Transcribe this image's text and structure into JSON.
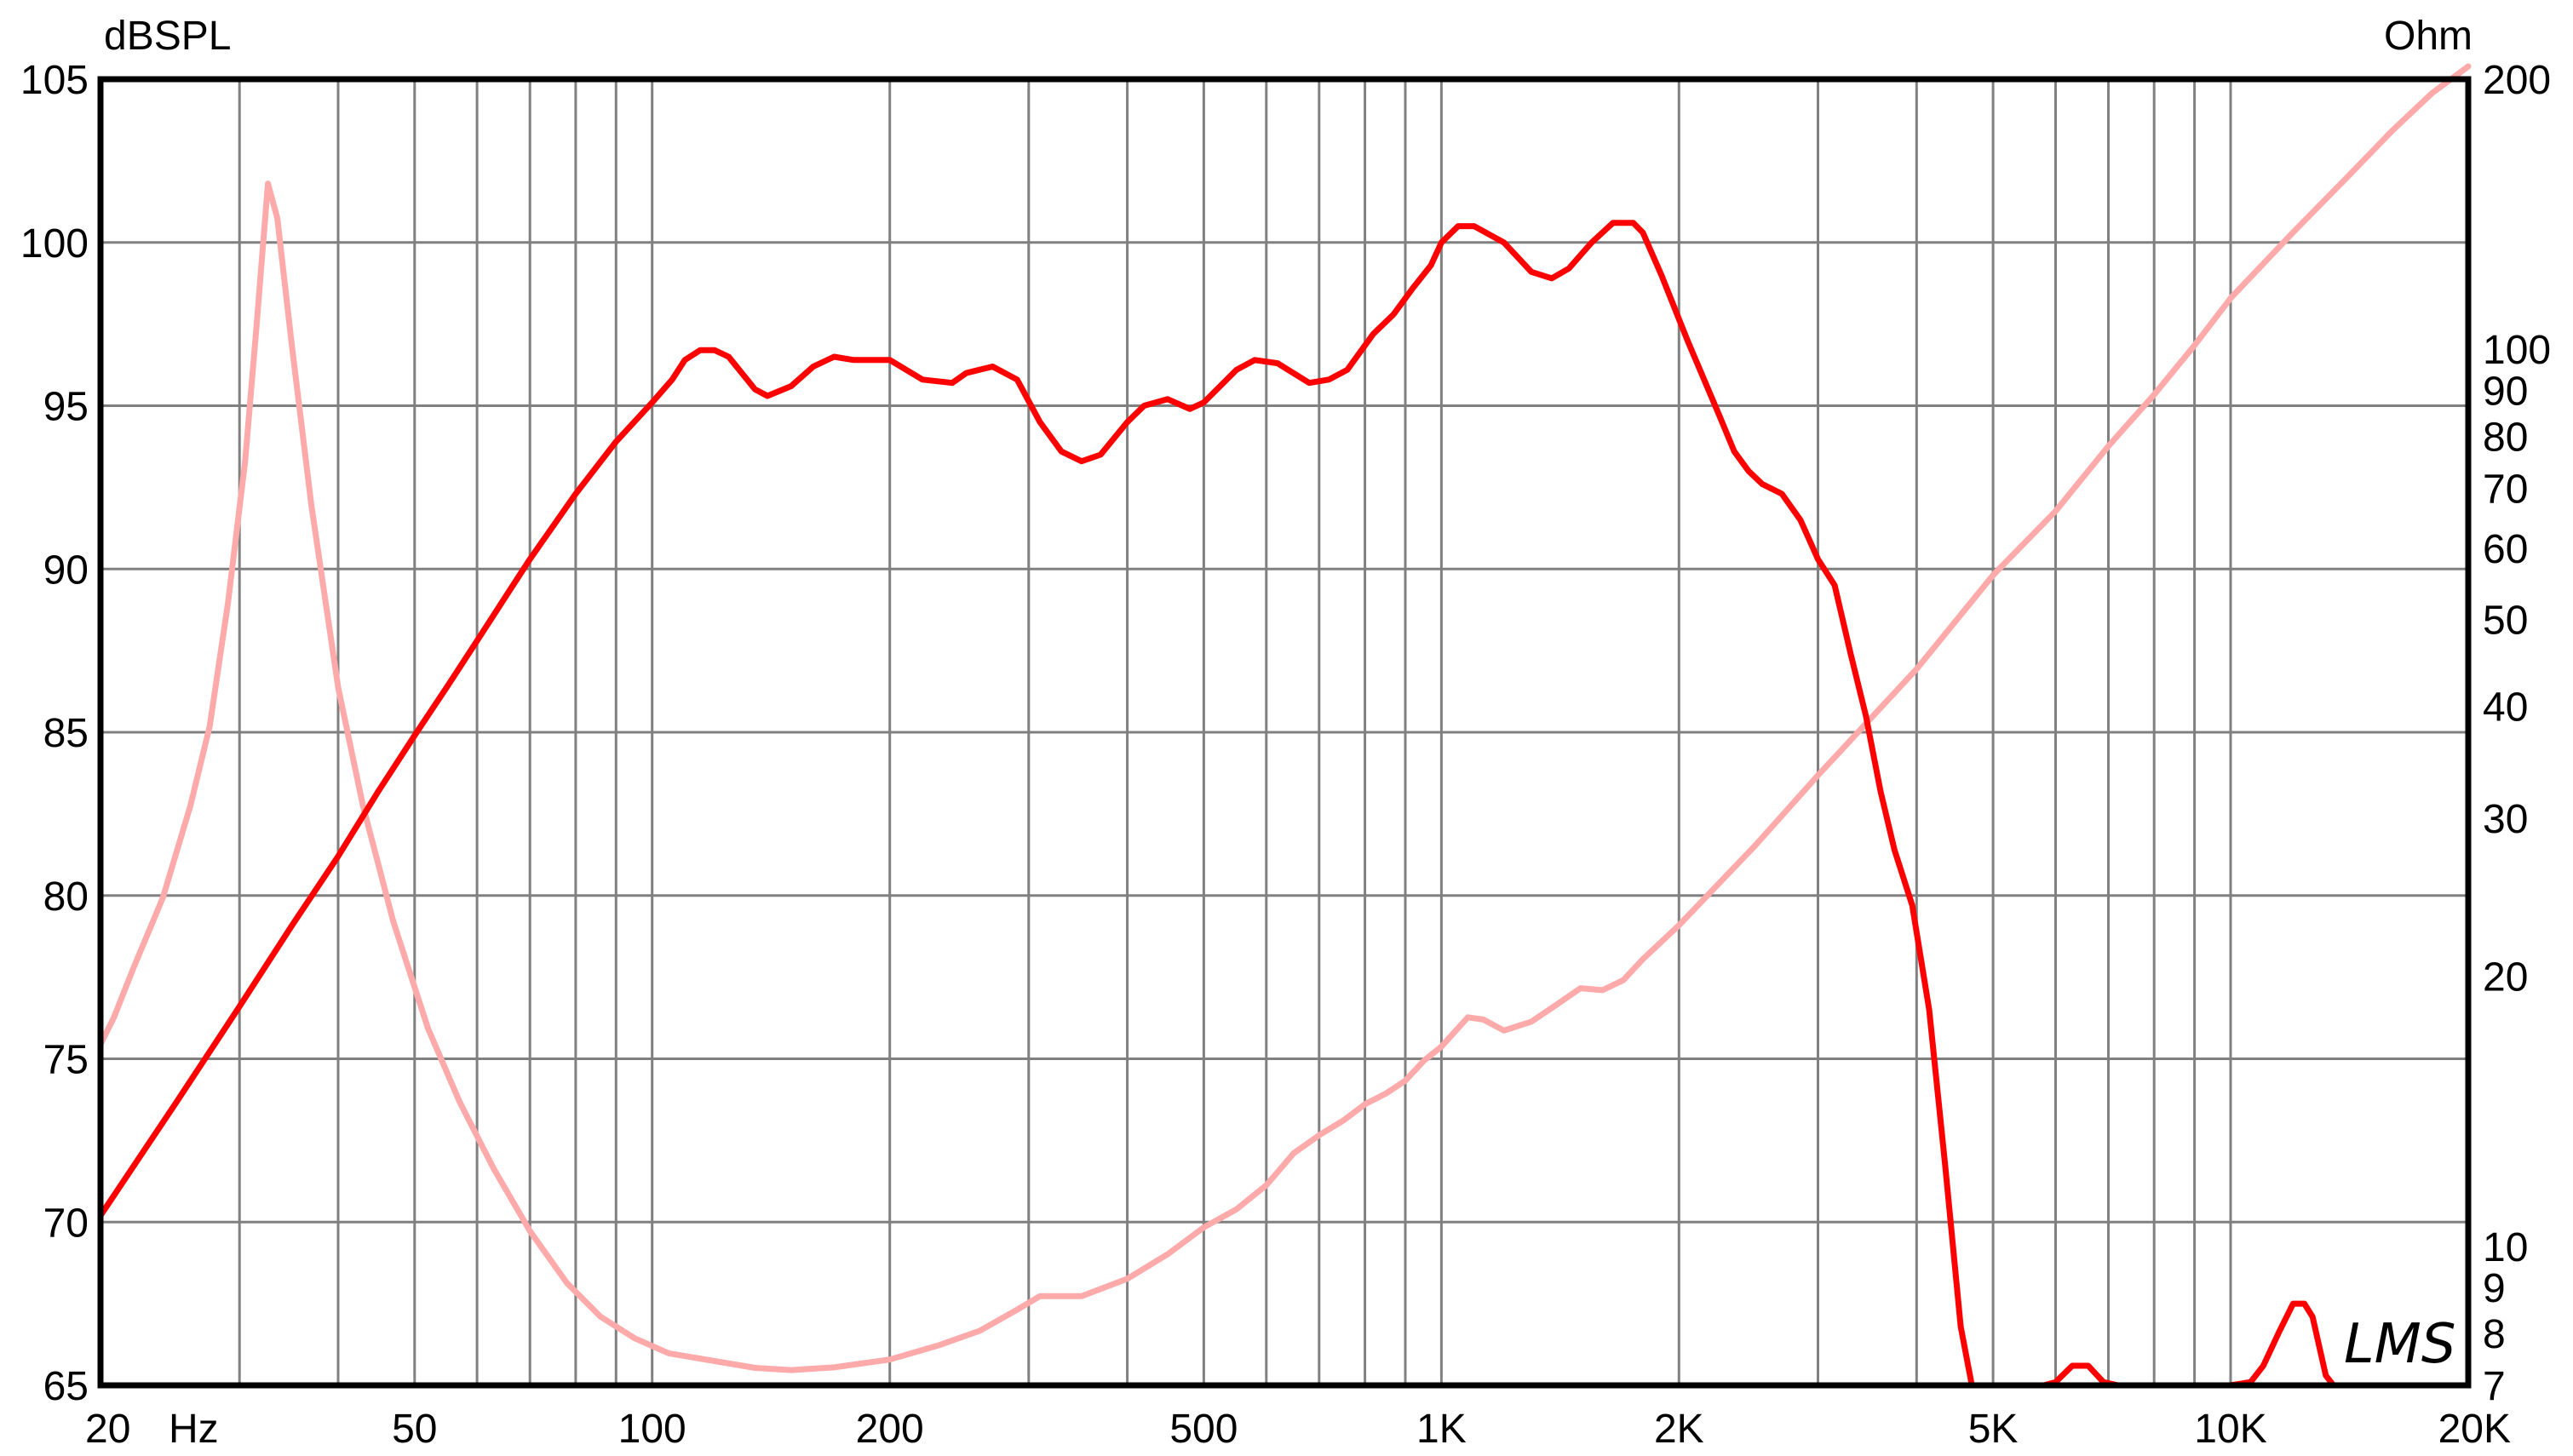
{
  "chart_data": {
    "type": "line",
    "title": "",
    "xlabel": "Hz",
    "ylabel": "dBSPL",
    "y2label": "Ohm",
    "x_scale": "log",
    "xlim": [
      20,
      20000
    ],
    "ylim": [
      65,
      105
    ],
    "y2_scale": "log",
    "y2lim": [
      7,
      200
    ],
    "grid": true,
    "x_ticks": [
      {
        "value": 20,
        "label": "20"
      },
      {
        "value": 50,
        "label": "50"
      },
      {
        "value": 100,
        "label": "100"
      },
      {
        "value": 200,
        "label": "200"
      },
      {
        "value": 500,
        "label": "500"
      },
      {
        "value": 1000,
        "label": "1K"
      },
      {
        "value": 2000,
        "label": "2K"
      },
      {
        "value": 5000,
        "label": "5K"
      },
      {
        "value": 10000,
        "label": "10K"
      },
      {
        "value": 20000,
        "label": "20K"
      }
    ],
    "y_ticks": [
      {
        "value": 105,
        "label": "105"
      },
      {
        "value": 100,
        "label": "100"
      },
      {
        "value": 95,
        "label": "95"
      },
      {
        "value": 90,
        "label": "90"
      },
      {
        "value": 85,
        "label": "85"
      },
      {
        "value": 80,
        "label": "80"
      },
      {
        "value": 75,
        "label": "75"
      },
      {
        "value": 70,
        "label": "70"
      },
      {
        "value": 65,
        "label": "65"
      }
    ],
    "y2_ticks": [
      {
        "value": 200,
        "label": "200"
      },
      {
        "value": 100,
        "label": "100"
      },
      {
        "value": 90,
        "label": "90"
      },
      {
        "value": 80,
        "label": "80"
      },
      {
        "value": 70,
        "label": "70"
      },
      {
        "value": 60,
        "label": "60"
      },
      {
        "value": 50,
        "label": "50"
      },
      {
        "value": 40,
        "label": "40"
      },
      {
        "value": 30,
        "label": "30"
      },
      {
        "value": 20,
        "label": "20"
      },
      {
        "value": 10,
        "label": "10"
      },
      {
        "value": 9,
        "label": "9"
      },
      {
        "value": 8,
        "label": "8"
      },
      {
        "value": 7,
        "label": "7"
      }
    ],
    "series": [
      {
        "axis": "left",
        "color": "#ff0000",
        "points": [
          [
            20,
            70.2
          ],
          [
            25,
            73.7
          ],
          [
            30,
            76.6
          ],
          [
            35,
            79.1
          ],
          [
            40,
            81.2
          ],
          [
            45,
            83.2
          ],
          [
            50,
            84.9
          ],
          [
            55,
            86.4
          ],
          [
            60,
            87.8
          ],
          [
            65,
            89.1
          ],
          [
            70,
            90.3
          ],
          [
            80,
            92.3
          ],
          [
            90,
            93.9
          ],
          [
            100,
            95.1
          ],
          [
            106,
            95.8
          ],
          [
            110,
            96.4
          ],
          [
            115,
            96.7
          ],
          [
            120,
            96.7
          ],
          [
            125,
            96.5
          ],
          [
            135,
            95.5
          ],
          [
            140,
            95.3
          ],
          [
            150,
            95.6
          ],
          [
            160,
            96.2
          ],
          [
            170,
            96.5
          ],
          [
            180,
            96.4
          ],
          [
            200,
            96.4
          ],
          [
            220,
            95.8
          ],
          [
            240,
            95.7
          ],
          [
            250,
            96.0
          ],
          [
            270,
            96.2
          ],
          [
            290,
            95.8
          ],
          [
            310,
            94.5
          ],
          [
            330,
            93.6
          ],
          [
            350,
            93.3
          ],
          [
            370,
            93.5
          ],
          [
            400,
            94.5
          ],
          [
            420,
            95.0
          ],
          [
            450,
            95.2
          ],
          [
            480,
            94.9
          ],
          [
            500,
            95.1
          ],
          [
            550,
            96.1
          ],
          [
            580,
            96.4
          ],
          [
            620,
            96.3
          ],
          [
            680,
            95.7
          ],
          [
            720,
            95.8
          ],
          [
            760,
            96.1
          ],
          [
            820,
            97.2
          ],
          [
            870,
            97.8
          ],
          [
            920,
            98.6
          ],
          [
            970,
            99.3
          ],
          [
            1000,
            100.0
          ],
          [
            1050,
            100.5
          ],
          [
            1100,
            100.5
          ],
          [
            1200,
            100.0
          ],
          [
            1300,
            99.1
          ],
          [
            1380,
            98.9
          ],
          [
            1450,
            99.2
          ],
          [
            1550,
            100.0
          ],
          [
            1650,
            100.6
          ],
          [
            1750,
            100.6
          ],
          [
            1800,
            100.3
          ],
          [
            1900,
            99.0
          ],
          [
            2050,
            97.0
          ],
          [
            2250,
            94.7
          ],
          [
            2350,
            93.6
          ],
          [
            2450,
            93.0
          ],
          [
            2550,
            92.6
          ],
          [
            2700,
            92.3
          ],
          [
            2850,
            91.5
          ],
          [
            3000,
            90.3
          ],
          [
            3150,
            89.5
          ],
          [
            3300,
            87.4
          ],
          [
            3450,
            85.5
          ],
          [
            3600,
            83.2
          ],
          [
            3750,
            81.4
          ],
          [
            3950,
            79.7
          ],
          [
            4150,
            76.5
          ],
          [
            4350,
            71.7
          ],
          [
            4550,
            66.8
          ],
          [
            4700,
            65.0
          ],
          [
            5000,
            65.0
          ],
          [
            5800,
            65.0
          ],
          [
            6000,
            65.1
          ],
          [
            6300,
            65.6
          ],
          [
            6600,
            65.6
          ],
          [
            6900,
            65.1
          ],
          [
            7200,
            65.0
          ],
          [
            8000,
            65.0
          ],
          [
            10000,
            65.0
          ],
          [
            10600,
            65.1
          ],
          [
            11000,
            65.6
          ],
          [
            11500,
            66.6
          ],
          [
            12000,
            67.5
          ],
          [
            12400,
            67.5
          ],
          [
            12700,
            67.1
          ],
          [
            13200,
            65.3
          ],
          [
            13500,
            65.0
          ],
          [
            20000,
            65.0
          ]
        ]
      },
      {
        "axis": "right",
        "color": "#ffaaaa",
        "points": [
          [
            20,
            16.8
          ],
          [
            20.8,
            18.0
          ],
          [
            22,
            20.4
          ],
          [
            24,
            24.5
          ],
          [
            26,
            31.0
          ],
          [
            27.5,
            38.0
          ],
          [
            29,
            52.0
          ],
          [
            30.5,
            75.0
          ],
          [
            31.5,
            105.0
          ],
          [
            32.6,
            153.0
          ],
          [
            33.5,
            140.0
          ],
          [
            35,
            100.0
          ],
          [
            37,
            67.0
          ],
          [
            40,
            42.0
          ],
          [
            43,
            31.0
          ],
          [
            47,
            23.0
          ],
          [
            52,
            17.5
          ],
          [
            57,
            14.5
          ],
          [
            63,
            12.2
          ],
          [
            70,
            10.4
          ],
          [
            78,
            9.1
          ],
          [
            86,
            8.35
          ],
          [
            95,
            7.9
          ],
          [
            105,
            7.6
          ],
          [
            120,
            7.45
          ],
          [
            135,
            7.32
          ],
          [
            150,
            7.28
          ],
          [
            170,
            7.33
          ],
          [
            200,
            7.48
          ],
          [
            230,
            7.75
          ],
          [
            260,
            8.05
          ],
          [
            290,
            8.5
          ],
          [
            310,
            8.8
          ],
          [
            350,
            8.8
          ],
          [
            400,
            9.2
          ],
          [
            450,
            9.8
          ],
          [
            500,
            10.5
          ],
          [
            550,
            11.0
          ],
          [
            600,
            11.7
          ],
          [
            650,
            12.7
          ],
          [
            700,
            13.3
          ],
          [
            750,
            13.8
          ],
          [
            800,
            14.4
          ],
          [
            850,
            14.8
          ],
          [
            900,
            15.3
          ],
          [
            950,
            16.1
          ],
          [
            1000,
            16.7
          ],
          [
            1080,
            18.0
          ],
          [
            1130,
            17.9
          ],
          [
            1200,
            17.4
          ],
          [
            1300,
            17.8
          ],
          [
            1400,
            18.6
          ],
          [
            1500,
            19.4
          ],
          [
            1600,
            19.3
          ],
          [
            1700,
            19.8
          ],
          [
            1800,
            20.9
          ],
          [
            2000,
            22.8
          ],
          [
            2500,
            28.0
          ],
          [
            3000,
            33.5
          ],
          [
            4000,
            44.0
          ],
          [
            5000,
            56.0
          ],
          [
            6000,
            66.0
          ],
          [
            7000,
            78.0
          ],
          [
            8000,
            89.0
          ],
          [
            9000,
            101.0
          ],
          [
            10000,
            114.0
          ],
          [
            12000,
            135.0
          ],
          [
            14000,
            155.0
          ],
          [
            16000,
            175.0
          ],
          [
            18000,
            193.0
          ],
          [
            20000,
            215.0
          ]
        ]
      }
    ]
  }
}
